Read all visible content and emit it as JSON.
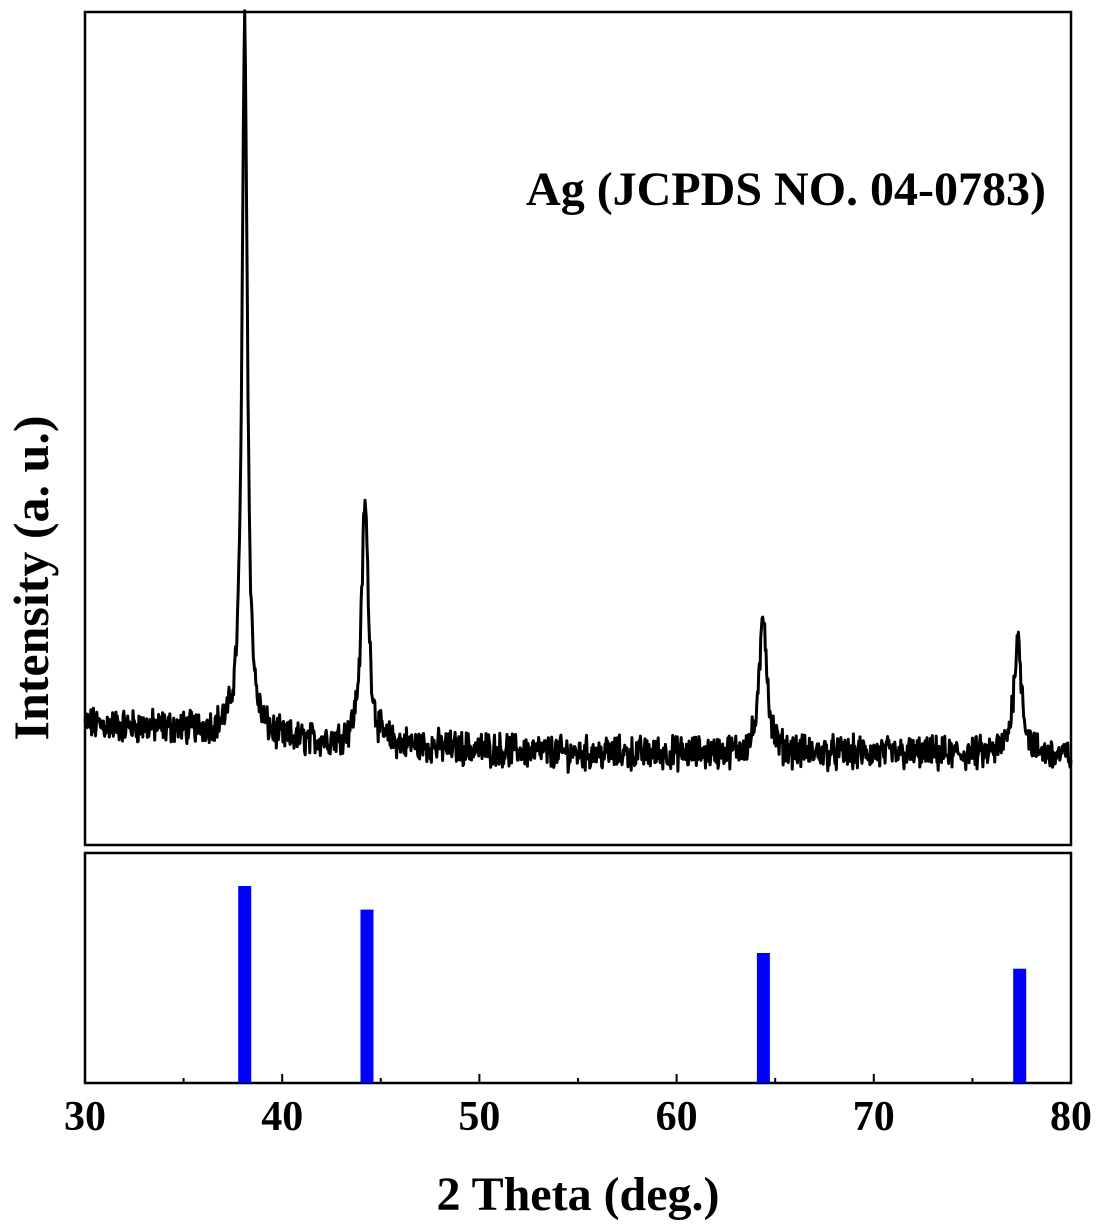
{
  "chart_data": [
    {
      "type": "line",
      "annotation": "Ag (JCPDS NO. 04-0783)",
      "ylabel": "Intensity (a. u.)",
      "xlim": [
        30,
        80
      ],
      "ylim": [
        0,
        100
      ],
      "yticks_visible": false,
      "series": [
        {
          "color": "#000000",
          "baseline": [
            [
              30,
              14.5
            ],
            [
              36,
              13.8
            ],
            [
              37.5,
              13.5
            ],
            [
              40,
              12.5
            ],
            [
              45,
              12.0
            ],
            [
              50,
              11.5
            ],
            [
              55,
              11.0
            ],
            [
              60,
              11.0
            ],
            [
              65,
              11.0
            ],
            [
              70,
              11.0
            ],
            [
              75,
              10.8
            ],
            [
              80,
              10.6
            ]
          ],
          "noise_amplitude": 1.6,
          "peaks": [
            {
              "x": 38.1,
              "height": 86.0,
              "fwhm": 0.32
            },
            {
              "x": 44.2,
              "height": 29.0,
              "fwhm": 0.42
            },
            {
              "x": 64.4,
              "height": 16.8,
              "fwhm": 0.45
            },
            {
              "x": 77.3,
              "height": 14.0,
              "fwhm": 0.5
            }
          ]
        }
      ]
    },
    {
      "type": "bar",
      "xlabel": "2 Theta (deg.)",
      "xlim": [
        30,
        80
      ],
      "xticks": [
        30,
        40,
        50,
        60,
        70,
        80
      ],
      "ylim": [
        0,
        100
      ],
      "color": "#0000ff",
      "x": [
        38.1,
        44.3,
        64.4,
        77.4
      ],
      "values": [
        100,
        88,
        66,
        58
      ]
    }
  ]
}
